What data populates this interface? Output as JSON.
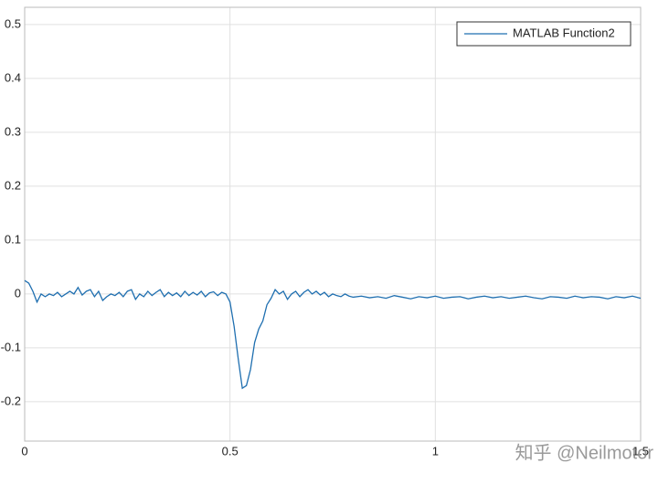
{
  "chart_data": {
    "type": "line",
    "x": [
      0,
      0.01,
      0.02,
      0.03,
      0.04,
      0.05,
      0.06,
      0.07,
      0.08,
      0.09,
      0.1,
      0.11,
      0.12,
      0.13,
      0.14,
      0.15,
      0.16,
      0.17,
      0.18,
      0.19,
      0.2,
      0.21,
      0.22,
      0.23,
      0.24,
      0.25,
      0.26,
      0.27,
      0.28,
      0.29,
      0.3,
      0.31,
      0.32,
      0.33,
      0.34,
      0.35,
      0.36,
      0.37,
      0.38,
      0.39,
      0.4,
      0.41,
      0.42,
      0.43,
      0.44,
      0.45,
      0.46,
      0.47,
      0.48,
      0.49,
      0.5,
      0.51,
      0.52,
      0.53,
      0.54,
      0.55,
      0.56,
      0.57,
      0.58,
      0.59,
      0.6,
      0.61,
      0.62,
      0.63,
      0.64,
      0.65,
      0.66,
      0.67,
      0.68,
      0.69,
      0.7,
      0.71,
      0.72,
      0.73,
      0.74,
      0.75,
      0.76,
      0.77,
      0.78,
      0.79,
      0.8,
      0.82,
      0.84,
      0.86,
      0.88,
      0.9,
      0.92,
      0.94,
      0.96,
      0.98,
      1,
      1.02,
      1.04,
      1.06,
      1.08,
      1.1,
      1.12,
      1.14,
      1.16,
      1.18,
      1.2,
      1.22,
      1.24,
      1.26,
      1.28,
      1.3,
      1.32,
      1.34,
      1.36,
      1.38,
      1.4,
      1.42,
      1.44,
      1.46,
      1.48,
      1.5
    ],
    "series": [
      {
        "name": "MATLAB Function2",
        "color": "#1f6fb0",
        "values": [
          0.025,
          0.02,
          0.005,
          -0.015,
          0,
          -0.005,
          0,
          -0.003,
          0.003,
          -0.005,
          0,
          0.005,
          0,
          0.012,
          -0.002,
          0.005,
          0.008,
          -0.005,
          0.005,
          -0.012,
          -0.005,
          0,
          -0.003,
          0.003,
          -0.005,
          0.005,
          0.008,
          -0.01,
          0,
          -0.005,
          0.005,
          -0.003,
          0.003,
          0.008,
          -0.005,
          0.003,
          -0.003,
          0.002,
          -0.005,
          0.005,
          -0.003,
          0.003,
          -0.002,
          0.005,
          -0.005,
          0.002,
          0.004,
          -0.003,
          0.003,
          0,
          -0.015,
          -0.06,
          -0.12,
          -0.175,
          -0.17,
          -0.14,
          -0.09,
          -0.065,
          -0.05,
          -0.02,
          -0.008,
          0.008,
          0,
          0.005,
          -0.01,
          0,
          0.005,
          -0.005,
          0.003,
          0.008,
          0,
          0.005,
          -0.002,
          0.003,
          -0.005,
          0,
          -0.003,
          -0.005,
          0,
          -0.004,
          -0.006,
          -0.004,
          -0.007,
          -0.005,
          -0.008,
          -0.003,
          -0.006,
          -0.009,
          -0.005,
          -0.007,
          -0.004,
          -0.008,
          -0.006,
          -0.005,
          -0.009,
          -0.006,
          -0.004,
          -0.007,
          -0.005,
          -0.008,
          -0.006,
          -0.004,
          -0.007,
          -0.009,
          -0.005,
          -0.006,
          -0.008,
          -0.004,
          -0.007,
          -0.005,
          -0.006,
          -0.009,
          -0.005,
          -0.007,
          -0.004,
          -0.008
        ]
      }
    ],
    "xlim": [
      0,
      1.5
    ],
    "xticks": [
      0,
      0.5,
      1,
      1.5
    ],
    "ylim": [
      -0.273,
      0.532
    ],
    "yticks": [
      -0.2,
      -0.1,
      0,
      0.1,
      0.2,
      0.3,
      0.4,
      0.5
    ],
    "grid": true,
    "legend": "upper right",
    "watermark": "知乎 @Neilmotor"
  }
}
